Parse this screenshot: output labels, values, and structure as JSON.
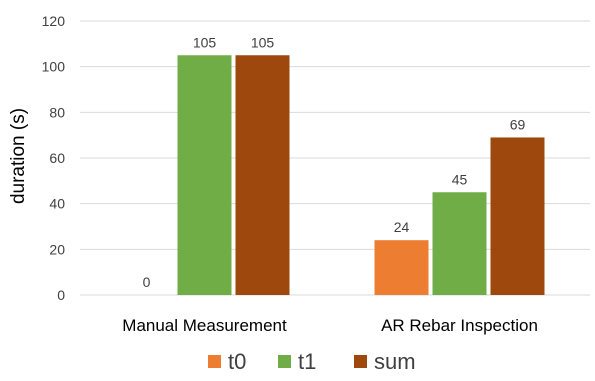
{
  "chart_data": {
    "type": "bar",
    "categories": [
      "Manual Measurement",
      "AR Rebar Inspection"
    ],
    "series": [
      {
        "name": "t0",
        "values": [
          0,
          24
        ],
        "color": "#ED7D31"
      },
      {
        "name": "t1",
        "values": [
          105,
          45
        ],
        "color": "#70AD47"
      },
      {
        "name": "sum",
        "values": [
          105,
          69
        ],
        "color": "#9E480E"
      }
    ],
    "ylabel": "duration (s)",
    "ylim": [
      0,
      120
    ],
    "yticks": [
      0,
      20,
      40,
      60,
      80,
      100,
      120
    ],
    "grid": true,
    "legend_position": "bottom",
    "data_labels": true,
    "colors": {
      "gridline": "#D9D9D9",
      "text": "#404040",
      "axis_label": "#000000"
    }
  }
}
